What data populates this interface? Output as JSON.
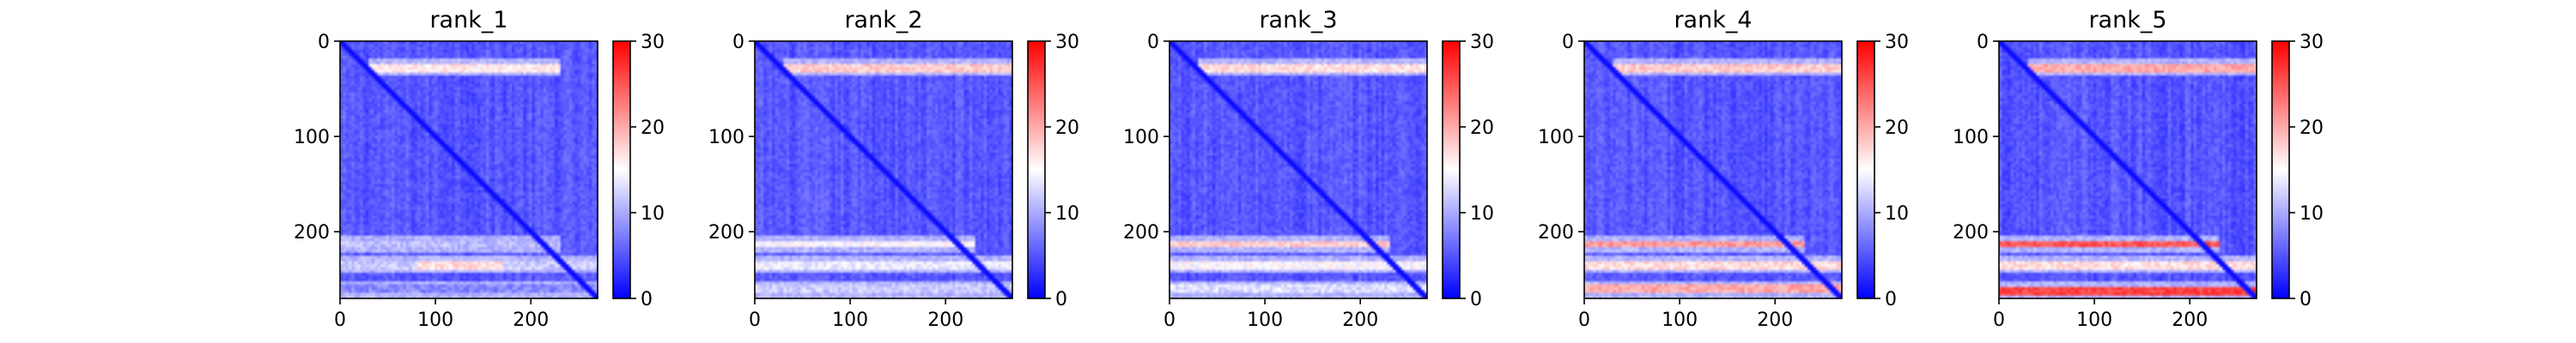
{
  "figure": {
    "colors": {
      "low": "#0000ff",
      "mid": "#ffffff",
      "high": "#ff0000"
    }
  },
  "chart_data": [
    {
      "type": "heatmap",
      "title": "rank_1",
      "xlabel": "",
      "ylabel": "",
      "xlim": [
        0,
        270
      ],
      "ylim": [
        270,
        0
      ],
      "xticks": [
        0,
        100,
        200
      ],
      "yticks": [
        0,
        100,
        200
      ],
      "colorbar": {
        "range": [
          0,
          30
        ],
        "ticks": [
          0,
          10,
          20,
          30
        ],
        "colormap": "bwr"
      },
      "base_value": 4,
      "diagonal_value": 0,
      "bands": [
        {
          "row": 28,
          "from": 30,
          "to": 230,
          "value": 16
        },
        {
          "row": 213,
          "from": 0,
          "to": 230,
          "value": 11
        },
        {
          "row": 235,
          "from": 0,
          "to": 270,
          "value": 12
        },
        {
          "row": 235,
          "from": 80,
          "to": 170,
          "value": 17
        },
        {
          "row": 260,
          "from": 0,
          "to": 270,
          "value": 8
        }
      ]
    },
    {
      "type": "heatmap",
      "title": "rank_2",
      "xlabel": "",
      "ylabel": "",
      "xlim": [
        0,
        270
      ],
      "ylim": [
        270,
        0
      ],
      "xticks": [
        0,
        100,
        200
      ],
      "yticks": [
        0,
        100,
        200
      ],
      "colorbar": {
        "range": [
          0,
          30
        ],
        "ticks": [
          0,
          10,
          20,
          30
        ],
        "colormap": "bwr"
      },
      "base_value": 4,
      "diagonal_value": 0,
      "bands": [
        {
          "row": 28,
          "from": 30,
          "to": 270,
          "value": 18
        },
        {
          "row": 213,
          "from": 0,
          "to": 230,
          "value": 15
        },
        {
          "row": 235,
          "from": 0,
          "to": 270,
          "value": 14
        },
        {
          "row": 260,
          "from": 0,
          "to": 270,
          "value": 12
        }
      ]
    },
    {
      "type": "heatmap",
      "title": "rank_3",
      "xlabel": "",
      "ylabel": "",
      "xlim": [
        0,
        270
      ],
      "ylim": [
        270,
        0
      ],
      "xticks": [
        0,
        100,
        200
      ],
      "yticks": [
        0,
        100,
        200
      ],
      "colorbar": {
        "range": [
          0,
          30
        ],
        "ticks": [
          0,
          10,
          20,
          30
        ],
        "colormap": "bwr"
      },
      "base_value": 4,
      "diagonal_value": 0,
      "bands": [
        {
          "row": 28,
          "from": 30,
          "to": 270,
          "value": 17
        },
        {
          "row": 213,
          "from": 0,
          "to": 230,
          "value": 18
        },
        {
          "row": 235,
          "from": 0,
          "to": 270,
          "value": 15
        },
        {
          "row": 260,
          "from": 0,
          "to": 270,
          "value": 13
        }
      ]
    },
    {
      "type": "heatmap",
      "title": "rank_4",
      "xlabel": "",
      "ylabel": "",
      "xlim": [
        0,
        270
      ],
      "ylim": [
        270,
        0
      ],
      "xticks": [
        0,
        100,
        200
      ],
      "yticks": [
        0,
        100,
        200
      ],
      "colorbar": {
        "range": [
          0,
          30
        ],
        "ticks": [
          0,
          10,
          20,
          30
        ],
        "colormap": "bwr"
      },
      "base_value": 4,
      "diagonal_value": 0,
      "bands": [
        {
          "row": 28,
          "from": 30,
          "to": 270,
          "value": 18
        },
        {
          "row": 213,
          "from": 0,
          "to": 230,
          "value": 21
        },
        {
          "row": 235,
          "from": 0,
          "to": 270,
          "value": 17
        },
        {
          "row": 260,
          "from": 0,
          "to": 270,
          "value": 20
        }
      ]
    },
    {
      "type": "heatmap",
      "title": "rank_5",
      "xlabel": "",
      "ylabel": "",
      "xlim": [
        0,
        270
      ],
      "ylim": [
        270,
        0
      ],
      "xticks": [
        0,
        100,
        200
      ],
      "yticks": [
        0,
        100,
        200
      ],
      "colorbar": {
        "range": [
          0,
          30
        ],
        "ticks": [
          0,
          10,
          20,
          30
        ],
        "colormap": "bwr"
      },
      "base_value": 4,
      "diagonal_value": 0,
      "bands": [
        {
          "row": 28,
          "from": 30,
          "to": 270,
          "value": 20
        },
        {
          "row": 213,
          "from": 0,
          "to": 230,
          "value": 25
        },
        {
          "row": 235,
          "from": 0,
          "to": 270,
          "value": 17
        },
        {
          "row": 262,
          "from": 0,
          "to": 270,
          "value": 26
        }
      ]
    }
  ]
}
